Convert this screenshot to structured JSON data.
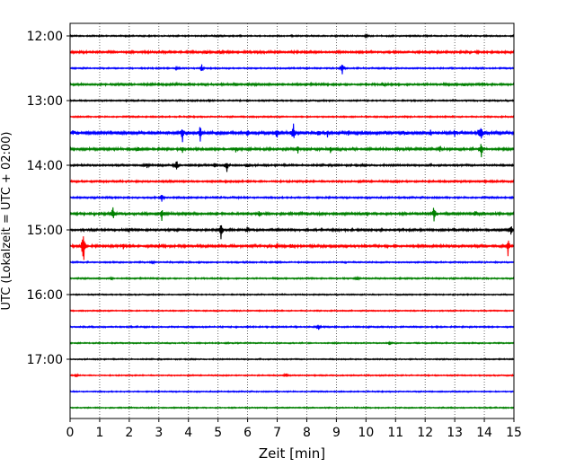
{
  "chart_data": {
    "type": "line",
    "xlabel": "Zeit  [min]",
    "ylabel": "UTC (Lokalzeit = UTC + 02:00)",
    "xlim": [
      0,
      15
    ],
    "x_ticks": [
      0,
      1,
      2,
      3,
      4,
      5,
      6,
      7,
      8,
      9,
      10,
      11,
      12,
      13,
      14,
      15
    ],
    "y_tick_labels": [
      "12:00",
      "13:00",
      "14:00",
      "15:00",
      "16:00",
      "17:00"
    ],
    "y_tick_rows": [
      0,
      4,
      8,
      12,
      16,
      20
    ],
    "row_minutes": 15,
    "row_count": 24,
    "grid": "vertical dotted lines at each minute",
    "color_cycle": [
      "#000000",
      "#ff0000",
      "#0000ff",
      "#008000"
    ],
    "traces": [
      {
        "label": "12:00",
        "noise": 0.6,
        "events": [
          [
            10.0,
            1.5
          ]
        ]
      },
      {
        "label": "12:15",
        "noise": 0.9,
        "events": [
          [
            4.6,
            1.5
          ],
          [
            5.1,
            1.2
          ]
        ]
      },
      {
        "label": "12:30",
        "noise": 0.6,
        "events": [
          [
            3.6,
            1.5
          ],
          [
            4.45,
            4.0
          ],
          [
            9.2,
            7.0
          ]
        ]
      },
      {
        "label": "12:45",
        "noise": 0.9,
        "events": [
          [
            5.6,
            1.5
          ],
          [
            10.6,
            1.5
          ],
          [
            13.3,
            1.5
          ]
        ]
      },
      {
        "label": "13:00",
        "noise": 0.6,
        "events": [
          [
            4.7,
            1.5
          ]
        ]
      },
      {
        "label": "13:15",
        "noise": 0.6,
        "events": []
      },
      {
        "label": "13:30",
        "noise": 1.2,
        "events": [
          [
            0.1,
            3
          ],
          [
            3.8,
            10
          ],
          [
            4.4,
            9
          ],
          [
            6.0,
            5
          ],
          [
            7.0,
            8
          ],
          [
            7.55,
            12
          ],
          [
            8.4,
            3
          ],
          [
            8.7,
            4
          ],
          [
            9.4,
            3
          ],
          [
            10.7,
            3
          ],
          [
            11.3,
            3
          ],
          [
            12.2,
            3
          ],
          [
            13.0,
            4
          ],
          [
            13.8,
            4
          ],
          [
            13.9,
            10
          ]
        ]
      },
      {
        "label": "13:45",
        "noise": 1.0,
        "events": [
          [
            2.3,
            3
          ],
          [
            3.8,
            3
          ],
          [
            5.6,
            3
          ],
          [
            7.7,
            4
          ],
          [
            8.8,
            5
          ],
          [
            12.5,
            4
          ],
          [
            13.9,
            9
          ]
        ]
      },
      {
        "label": "14:00",
        "noise": 0.8,
        "events": [
          [
            2.6,
            4
          ],
          [
            3.6,
            7
          ],
          [
            4.9,
            3
          ],
          [
            5.3,
            7
          ],
          [
            6.0,
            3
          ]
        ]
      },
      {
        "label": "14:15",
        "noise": 0.8,
        "events": []
      },
      {
        "label": "14:30",
        "noise": 0.7,
        "events": [
          [
            3.1,
            4
          ]
        ]
      },
      {
        "label": "14:45",
        "noise": 1.0,
        "events": [
          [
            1.45,
            10
          ],
          [
            3.1,
            9
          ],
          [
            6.4,
            3
          ],
          [
            12.3,
            10
          ],
          [
            13.7,
            3
          ]
        ]
      },
      {
        "label": "15:00",
        "noise": 0.9,
        "events": [
          [
            2.0,
            3
          ],
          [
            5.1,
            10
          ],
          [
            6.0,
            4
          ],
          [
            14.9,
            8
          ]
        ]
      },
      {
        "label": "15:15",
        "noise": 1.0,
        "events": [
          [
            0.45,
            25
          ],
          [
            1.8,
            4
          ],
          [
            3.0,
            3
          ],
          [
            7.0,
            5
          ],
          [
            7.5,
            3
          ],
          [
            14.8,
            12
          ]
        ]
      },
      {
        "label": "15:30",
        "noise": 0.6,
        "events": [
          [
            2.8,
            2
          ]
        ]
      },
      {
        "label": "15:45",
        "noise": 0.6,
        "events": [
          [
            1.4,
            1.5
          ],
          [
            9.7,
            1.5
          ]
        ]
      },
      {
        "label": "16:00",
        "noise": 0.5,
        "events": []
      },
      {
        "label": "16:15",
        "noise": 0.5,
        "events": []
      },
      {
        "label": "16:30",
        "noise": 0.6,
        "events": [
          [
            8.4,
            3
          ]
        ]
      },
      {
        "label": "16:45",
        "noise": 0.5,
        "events": [
          [
            10.8,
            1.5
          ]
        ]
      },
      {
        "label": "17:00",
        "noise": 0.5,
        "events": []
      },
      {
        "label": "17:15",
        "noise": 0.5,
        "events": [
          [
            0.2,
            2
          ],
          [
            7.3,
            3
          ]
        ]
      },
      {
        "label": "17:30",
        "noise": 0.5,
        "events": []
      },
      {
        "label": "17:45",
        "noise": 0.5,
        "events": []
      }
    ]
  }
}
